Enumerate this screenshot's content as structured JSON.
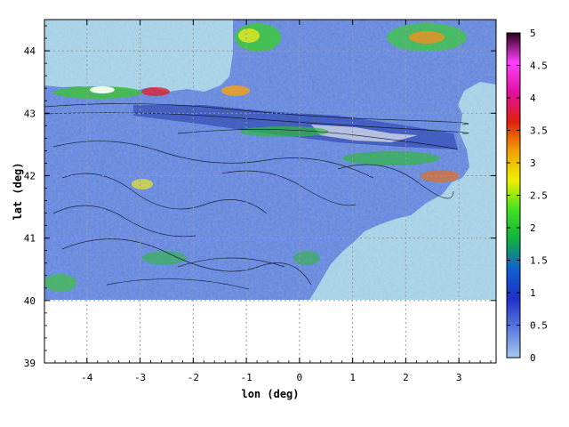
{
  "chart_data": {
    "type": "heatmap",
    "title": "",
    "xlabel": "lon (deg)",
    "ylabel": "lat (deg)",
    "xlim": [
      -4.8,
      3.7
    ],
    "ylim": [
      39,
      44.5
    ],
    "x_ticks": [
      "-4",
      "-3",
      "-2",
      "-1",
      "0",
      "1",
      "2",
      "3"
    ],
    "y_ticks": [
      "39",
      "40",
      "41",
      "42",
      "43",
      "44"
    ],
    "grid": true,
    "data_extent": {
      "lon": [
        -4.8,
        3.7
      ],
      "lat": [
        40.0,
        44.5
      ]
    },
    "colorbar": {
      "range": [
        0,
        5
      ],
      "ticks": [
        "0",
        "0.5",
        "1",
        "1.5",
        "2",
        "2.5",
        "3",
        "3.5",
        "4",
        "4.5",
        "5"
      ],
      "colors": [
        "#a8c8ec",
        "#5a7ae0",
        "#2030c8",
        "#1060d0",
        "#10b040",
        "#40e020",
        "#f0f000",
        "#f0a000",
        "#e02010",
        "#e010a0",
        "#ff40ff",
        "#2a0018"
      ]
    },
    "colors": {
      "sea": "#add8e6",
      "land_base": "#6688dd",
      "contour": "#000000"
    }
  }
}
